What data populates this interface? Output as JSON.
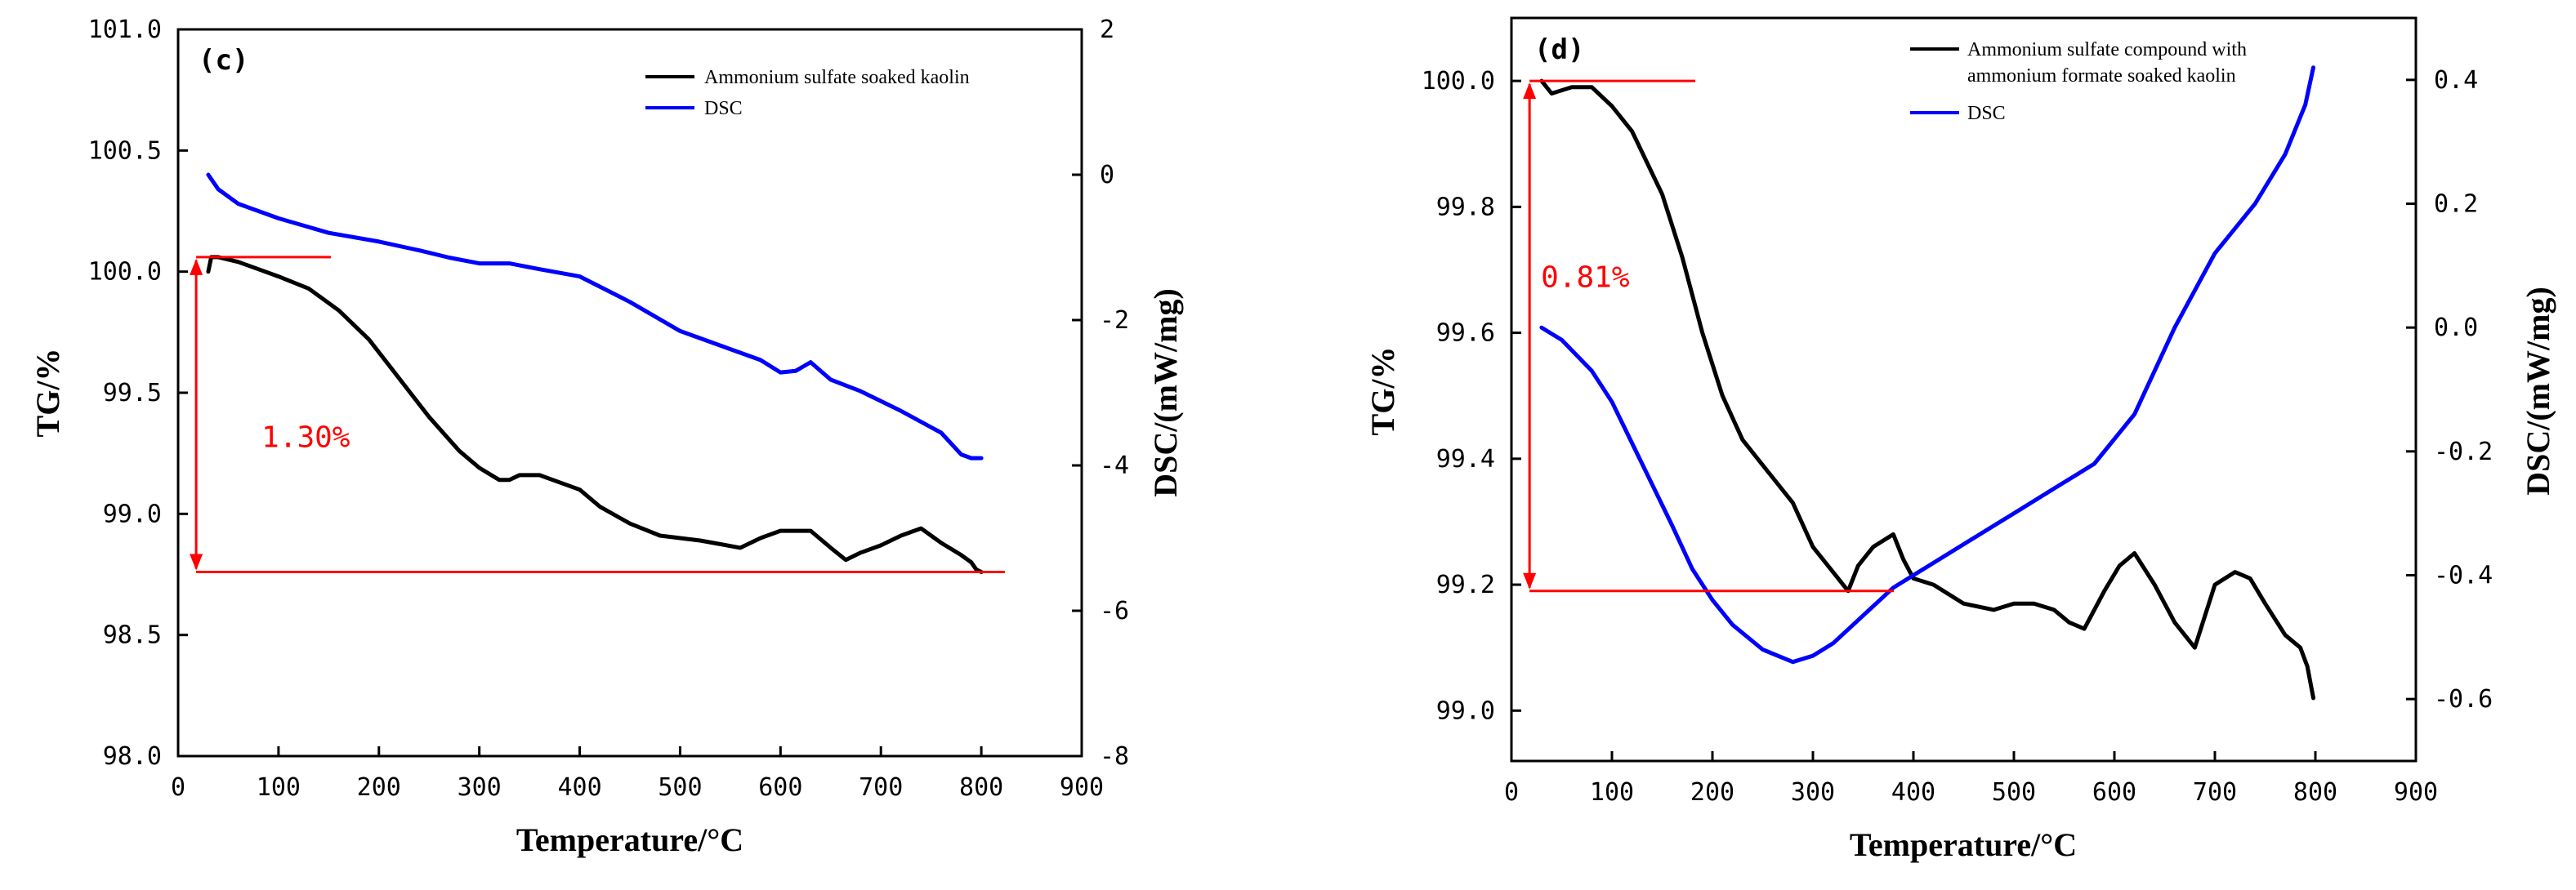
{
  "chart_data": [
    {
      "type": "line",
      "panel_label": "(c)",
      "xlabel": "Temperature/°C",
      "ylabel_left": "TG/%",
      "ylabel_right": "DSC/(mW/mg)",
      "xlim": [
        0,
        900
      ],
      "ylim_left": [
        98.0,
        101.0
      ],
      "ylim_right": [
        -8,
        2
      ],
      "x_ticks": [
        "0",
        "100",
        "200",
        "300",
        "400",
        "500",
        "600",
        "700",
        "800",
        "900"
      ],
      "y_left_ticks": [
        "98.0",
        "98.5",
        "99.0",
        "99.5",
        "100.0",
        "100.5",
        "101.0"
      ],
      "y_right_ticks": [
        "-8",
        "-6",
        "-4",
        "-2",
        "0",
        "2"
      ],
      "legend_position": "top-right",
      "annotation": {
        "text": "1.30%",
        "y_top": 100.06,
        "y_bottom": 98.76
      },
      "series": [
        {
          "name": "Ammonium sulfate soaked kaolin",
          "axis": "left",
          "color": "#000000",
          "x": [
            30,
            33,
            40,
            60,
            80,
            100,
            130,
            160,
            190,
            220,
            250,
            280,
            300,
            320,
            330,
            340,
            360,
            380,
            400,
            420,
            450,
            480,
            520,
            560,
            580,
            600,
            630,
            650,
            665,
            680,
            700,
            720,
            740,
            760,
            780,
            790,
            795,
            800
          ],
          "y": [
            100.0,
            100.06,
            100.06,
            100.04,
            100.01,
            99.98,
            99.93,
            99.84,
            99.72,
            99.56,
            99.4,
            99.26,
            99.19,
            99.14,
            99.14,
            99.16,
            99.16,
            99.13,
            99.1,
            99.03,
            98.96,
            98.91,
            98.89,
            98.86,
            98.9,
            98.93,
            98.93,
            98.86,
            98.81,
            98.84,
            98.87,
            98.91,
            98.94,
            98.88,
            98.83,
            98.8,
            98.77,
            98.76
          ]
        },
        {
          "name": "DSC",
          "axis": "right",
          "color": "#0000ff",
          "x": [
            30,
            40,
            60,
            100,
            150,
            200,
            240,
            270,
            300,
            330,
            360,
            400,
            450,
            500,
            550,
            580,
            600,
            615,
            630,
            650,
            680,
            720,
            760,
            780,
            790,
            800
          ],
          "y": [
            0.0,
            -0.2,
            -0.4,
            -0.6,
            -0.8,
            -0.92,
            -1.04,
            -1.14,
            -1.22,
            -1.22,
            -1.3,
            -1.4,
            -1.75,
            -2.15,
            -2.4,
            -2.55,
            -2.72,
            -2.7,
            -2.58,
            -2.82,
            -2.98,
            -3.25,
            -3.55,
            -3.85,
            -3.9,
            -3.9
          ]
        }
      ]
    },
    {
      "type": "line",
      "panel_label": "(d)",
      "xlabel": "Temperature/°C",
      "ylabel_left": "TG/%",
      "ylabel_right": "DSC/(mW/mg)",
      "xlim": [
        0,
        900
      ],
      "ylim_left": [
        98.92,
        100.1
      ],
      "ylim_right": [
        -0.7,
        0.5
      ],
      "x_ticks": [
        "0",
        "100",
        "200",
        "300",
        "400",
        "500",
        "600",
        "700",
        "800",
        "900"
      ],
      "y_left_ticks": [
        "99.0",
        "99.2",
        "99.4",
        "99.6",
        "99.8",
        "100.0"
      ],
      "y_right_ticks": [
        "-0.6",
        "-0.4",
        "-0.2",
        "0.0",
        "0.2",
        "0.4"
      ],
      "legend_position": "top-right",
      "annotation": {
        "text": "0.81%",
        "y_top": 100.0,
        "y_bottom": 99.19
      },
      "series": [
        {
          "name": "Ammonium sulfate compound with ammonium formate soaked kaolin",
          "axis": "left",
          "color": "#000000",
          "x": [
            30,
            40,
            60,
            80,
            100,
            120,
            150,
            170,
            190,
            210,
            230,
            260,
            280,
            300,
            320,
            335,
            345,
            360,
            380,
            390,
            400,
            420,
            450,
            480,
            500,
            520,
            540,
            555,
            570,
            590,
            605,
            620,
            640,
            660,
            680,
            700,
            720,
            735,
            750,
            770,
            785,
            792,
            798
          ],
          "y": [
            100.0,
            99.98,
            99.99,
            99.99,
            99.96,
            99.92,
            99.82,
            99.72,
            99.6,
            99.5,
            99.43,
            99.37,
            99.33,
            99.26,
            99.22,
            99.19,
            99.23,
            99.26,
            99.28,
            99.24,
            99.21,
            99.2,
            99.17,
            99.16,
            99.17,
            99.17,
            99.16,
            99.14,
            99.13,
            99.19,
            99.23,
            99.25,
            99.2,
            99.14,
            99.1,
            99.2,
            99.22,
            99.21,
            99.17,
            99.12,
            99.1,
            99.07,
            99.02
          ]
        },
        {
          "name": "DSC",
          "axis": "right",
          "color": "#0000ff",
          "x": [
            30,
            50,
            80,
            100,
            130,
            160,
            180,
            200,
            220,
            250,
            280,
            300,
            320,
            340,
            360,
            380,
            400,
            430,
            460,
            500,
            540,
            580,
            620,
            660,
            700,
            740,
            770,
            790,
            798
          ],
          "y": [
            0.0,
            -0.02,
            -0.07,
            -0.12,
            -0.22,
            -0.32,
            -0.39,
            -0.44,
            -0.48,
            -0.52,
            -0.54,
            -0.53,
            -0.51,
            -0.48,
            -0.45,
            -0.42,
            -0.4,
            -0.37,
            -0.34,
            -0.3,
            -0.26,
            -0.22,
            -0.14,
            0.0,
            0.12,
            0.2,
            0.28,
            0.36,
            0.42
          ]
        }
      ]
    }
  ]
}
